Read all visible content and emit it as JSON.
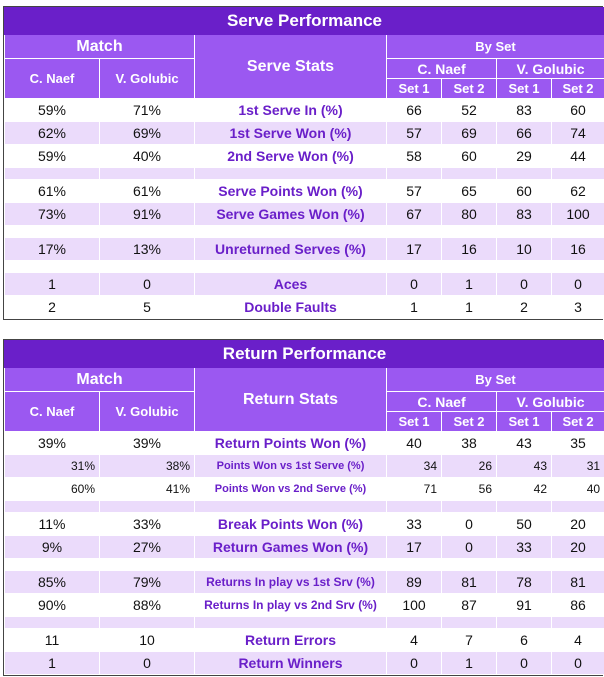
{
  "serve": {
    "title": "Serve Performance",
    "match_label": "Match",
    "stats_label": "Serve Stats",
    "byset_label": "By Set",
    "player1": "C. Naef",
    "player2": "V. Golubic",
    "set1": "Set 1",
    "set2": "Set 2",
    "rows": [
      {
        "type": "data",
        "shade": "white",
        "p1": "59%",
        "p2": "71%",
        "label": "1st Serve In (%)",
        "s": [
          "66",
          "52",
          "83",
          "60"
        ]
      },
      {
        "type": "data",
        "shade": "lilac",
        "p1": "62%",
        "p2": "69%",
        "label": "1st Serve Won (%)",
        "s": [
          "57",
          "69",
          "66",
          "74"
        ]
      },
      {
        "type": "data",
        "shade": "white",
        "p1": "59%",
        "p2": "40%",
        "label": "2nd Serve Won (%)",
        "s": [
          "58",
          "60",
          "29",
          "44"
        ]
      },
      {
        "type": "spacer",
        "shade": "lilac"
      },
      {
        "type": "data",
        "shade": "white",
        "p1": "61%",
        "p2": "61%",
        "label": "Serve Points Won (%)",
        "s": [
          "57",
          "65",
          "60",
          "62"
        ]
      },
      {
        "type": "data",
        "shade": "lilac",
        "p1": "73%",
        "p2": "91%",
        "label": "Serve Games Won (%)",
        "s": [
          "67",
          "80",
          "83",
          "100"
        ]
      },
      {
        "type": "spacer",
        "shade": "white"
      },
      {
        "type": "data",
        "shade": "lilac",
        "p1": "17%",
        "p2": "13%",
        "label": "Unreturned Serves (%)",
        "s": [
          "17",
          "16",
          "10",
          "16"
        ]
      },
      {
        "type": "spacer",
        "shade": "white"
      },
      {
        "type": "data",
        "shade": "lilac",
        "p1": "1",
        "p2": "0",
        "label": "Aces",
        "s": [
          "0",
          "1",
          "0",
          "0"
        ]
      },
      {
        "type": "data",
        "shade": "white",
        "p1": "2",
        "p2": "5",
        "label": "Double Faults",
        "s": [
          "1",
          "1",
          "2",
          "3"
        ]
      }
    ]
  },
  "return": {
    "title": "Return Performance",
    "match_label": "Match",
    "stats_label": "Return Stats",
    "byset_label": "By Set",
    "player1": "C. Naef",
    "player2": "V. Golubic",
    "set1": "Set 1",
    "set2": "Set 2",
    "rows": [
      {
        "type": "data",
        "shade": "white",
        "p1": "39%",
        "p2": "39%",
        "label": "Return Points Won (%)",
        "s": [
          "40",
          "38",
          "43",
          "35"
        ]
      },
      {
        "type": "sub",
        "shade": "lilac",
        "p1": "31%",
        "p2": "38%",
        "label": "Points Won vs 1st Serve (%)",
        "s": [
          "34",
          "26",
          "43",
          "31"
        ]
      },
      {
        "type": "sub",
        "shade": "white",
        "p1": "60%",
        "p2": "41%",
        "label": "Points Won vs 2nd Serve (%)",
        "s": [
          "71",
          "56",
          "42",
          "40"
        ]
      },
      {
        "type": "spacer",
        "shade": "lilac"
      },
      {
        "type": "data",
        "shade": "white",
        "p1": "11%",
        "p2": "33%",
        "label": "Break Points Won (%)",
        "s": [
          "33",
          "0",
          "50",
          "20"
        ]
      },
      {
        "type": "data",
        "shade": "lilac",
        "p1": "9%",
        "p2": "27%",
        "label": "Return Games Won (%)",
        "s": [
          "17",
          "0",
          "33",
          "20"
        ]
      },
      {
        "type": "spacer",
        "shade": "white"
      },
      {
        "type": "data",
        "shade": "lilac",
        "p1": "85%",
        "p2": "79%",
        "label": "Returns In play vs 1st Srv (%)",
        "s": [
          "89",
          "81",
          "78",
          "81"
        ],
        "smallLabel": true
      },
      {
        "type": "data",
        "shade": "white",
        "p1": "90%",
        "p2": "88%",
        "label": "Returns In play vs 2nd Srv (%)",
        "s": [
          "100",
          "87",
          "91",
          "86"
        ],
        "smallLabel": true
      },
      {
        "type": "spacer",
        "shade": "lilac"
      },
      {
        "type": "data",
        "shade": "white",
        "p1": "11",
        "p2": "10",
        "label": "Return Errors",
        "s": [
          "4",
          "7",
          "6",
          "4"
        ]
      },
      {
        "type": "data",
        "shade": "lilac",
        "p1": "1",
        "p2": "0",
        "label": "Return Winners",
        "s": [
          "0",
          "1",
          "0",
          "0"
        ]
      }
    ]
  }
}
